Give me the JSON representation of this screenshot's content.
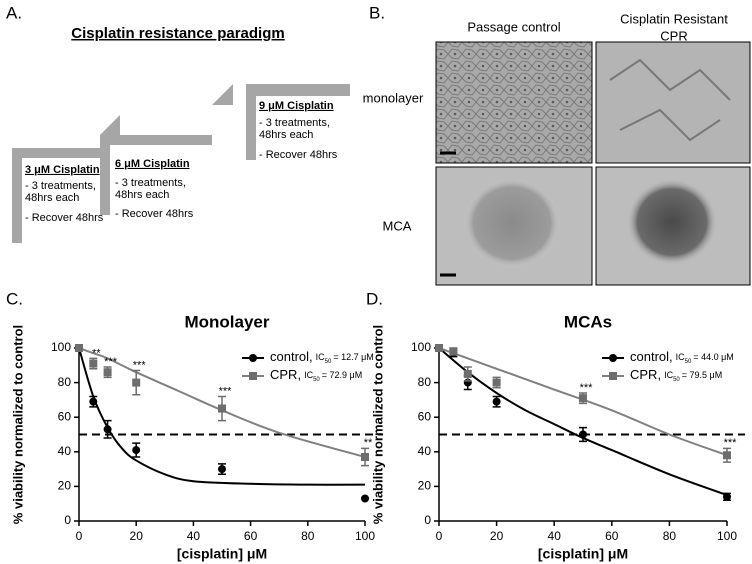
{
  "panel_a": {
    "label": "A.",
    "title": "Cisplatin resistance paradigm",
    "steps": [
      {
        "heading": "3 μM Cisplatin",
        "lines": [
          "- 3 treatments,",
          "48hrs each",
          "- Recover 48hrs"
        ]
      },
      {
        "heading": "6 μM Cisplatin",
        "lines": [
          "- 3 treatments,",
          "48hrs each",
          "- Recover 48hrs"
        ]
      },
      {
        "heading": "9 μM Cisplatin",
        "lines": [
          "- 3 treatments,",
          "48hrs each",
          "- Recover 48hrs"
        ]
      }
    ]
  },
  "panel_b": {
    "label": "B.",
    "columns": [
      "Passage control",
      "Cisplatin Resistant CPR"
    ],
    "column_lines": [
      [
        "Passage control"
      ],
      [
        "Cisplatin Resistant",
        "CPR"
      ]
    ],
    "rows": [
      "monolayer",
      "MCA"
    ]
  },
  "chart_data": [
    {
      "type": "scatter",
      "panel": "C.",
      "title": "Monolayer",
      "xlabel": "[cisplatin] μM",
      "ylabel": "% viability normalized to control",
      "xlim": [
        0,
        100
      ],
      "ylim": [
        0,
        100
      ],
      "xticks": [
        0,
        20,
        40,
        60,
        80,
        100
      ],
      "yticks": [
        0,
        20,
        40,
        60,
        80,
        100
      ],
      "reference_line": 50,
      "x": [
        0,
        5,
        10,
        20,
        50,
        100
      ],
      "series": [
        {
          "name": "control,",
          "color": "#000000",
          "marker": "circle",
          "values": [
            100,
            69,
            53,
            41,
            30,
            13
          ],
          "errors": [
            0,
            3,
            5,
            4,
            3,
            0
          ],
          "ic50": {
            "prefix": "IC",
            "sub": "50",
            "text": "= 12.7 μM"
          },
          "fit": {
            "x": [
              0,
              5,
              10,
              15,
              20,
              30,
              40,
              60,
              80,
              100
            ],
            "values": [
              100,
              72,
              54,
              42,
              35,
              27,
              23,
              21.5,
              21,
              21
            ]
          }
        },
        {
          "name": "CPR,",
          "color": "#6d6d6d",
          "marker": "square",
          "values": [
            100,
            91,
            86,
            80,
            65,
            37
          ],
          "errors": [
            0,
            3,
            3,
            7,
            7,
            5
          ],
          "ic50": {
            "prefix": "IC",
            "sub": "50",
            "text": "= 72.9 μM"
          },
          "fit": {
            "x": [
              0,
              5,
              10,
              20,
              35,
              50,
              70,
              100
            ],
            "values": [
              100,
              97,
              94,
              86,
              75,
              64,
              51,
              37
            ]
          }
        }
      ],
      "annotations": [
        {
          "x": 5,
          "label": "**"
        },
        {
          "x": 10,
          "label": "***"
        },
        {
          "x": 20,
          "label": "***"
        },
        {
          "x": 50,
          "label": "***"
        },
        {
          "x": 100,
          "label": "**"
        }
      ]
    },
    {
      "type": "scatter",
      "panel": "D.",
      "title": "MCAs",
      "xlabel": "[cisplatin] μM",
      "ylabel": "% viability normalized to control",
      "xlim": [
        0,
        100
      ],
      "ylim": [
        0,
        100
      ],
      "xticks": [
        0,
        20,
        40,
        60,
        80,
        100
      ],
      "yticks": [
        0,
        20,
        40,
        60,
        80,
        100
      ],
      "reference_line": 50,
      "x": [
        0,
        5,
        10,
        20,
        50,
        100
      ],
      "series": [
        {
          "name": "control,",
          "color": "#000000",
          "marker": "circle",
          "values": [
            100,
            97,
            80,
            69,
            50,
            14
          ],
          "errors": [
            0,
            2,
            4,
            3,
            4,
            2
          ],
          "ic50": {
            "prefix": "IC",
            "sub": "50",
            "text": "= 44.0 μM"
          },
          "fit": {
            "x": [
              0,
              10,
              20,
              30,
              40,
              50,
              60,
              80,
              100
            ],
            "values": [
              100,
              86,
              74,
              64,
              56,
              48,
              41,
              27,
              15
            ]
          }
        },
        {
          "name": "CPR,",
          "color": "#6d6d6d",
          "marker": "square",
          "values": [
            100,
            98,
            85,
            80,
            71,
            38
          ],
          "errors": [
            0,
            2,
            4,
            3,
            3,
            4
          ],
          "ic50": {
            "prefix": "IC",
            "sub": "50",
            "text": "= 79.5 μM"
          },
          "fit": {
            "x": [
              0,
              20,
              40,
              60,
              80,
              100
            ],
            "values": [
              100,
              88,
              76,
              64,
              50,
              38
            ]
          }
        }
      ],
      "annotations": [
        {
          "x": 50,
          "label": "***"
        },
        {
          "x": 100,
          "label": "***"
        }
      ]
    }
  ]
}
